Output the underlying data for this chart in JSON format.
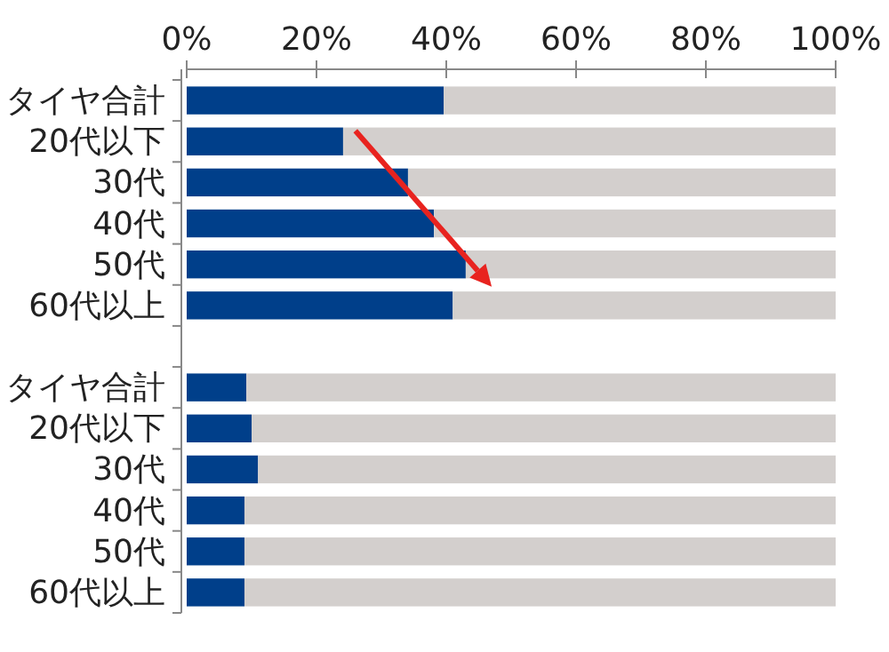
{
  "chart_data": {
    "type": "bar",
    "orientation": "horizontal",
    "stacked": true,
    "categories": [
      "タイヤ合計",
      "20代以下",
      "30代",
      "40代",
      "50代",
      "60代以上",
      null,
      "タイヤ合計",
      "20代以下",
      "30代",
      "40代",
      "50代",
      "60代以上"
    ],
    "series": [
      {
        "color": "#003f8a",
        "values": [
          39.6,
          24.1,
          34.1,
          38.1,
          43.0,
          41.0,
          null,
          9.2,
          10.0,
          11.0,
          8.9,
          8.9,
          8.9
        ]
      },
      {
        "color": "#d3cfcd",
        "values": [
          60.4,
          75.9,
          65.9,
          61.9,
          57.0,
          59.0,
          null,
          90.8,
          90.0,
          89.0,
          91.1,
          91.1,
          91.1
        ]
      }
    ],
    "xlim": [
      0,
      100
    ],
    "xticks": [
      {
        "value": 0,
        "label": "0%"
      },
      {
        "value": 20,
        "label": "20%"
      },
      {
        "value": 40,
        "label": "40%"
      },
      {
        "value": 60,
        "label": "60%"
      },
      {
        "value": 80,
        "label": "80%"
      },
      {
        "value": 100,
        "label": "100%"
      }
    ]
  }
}
